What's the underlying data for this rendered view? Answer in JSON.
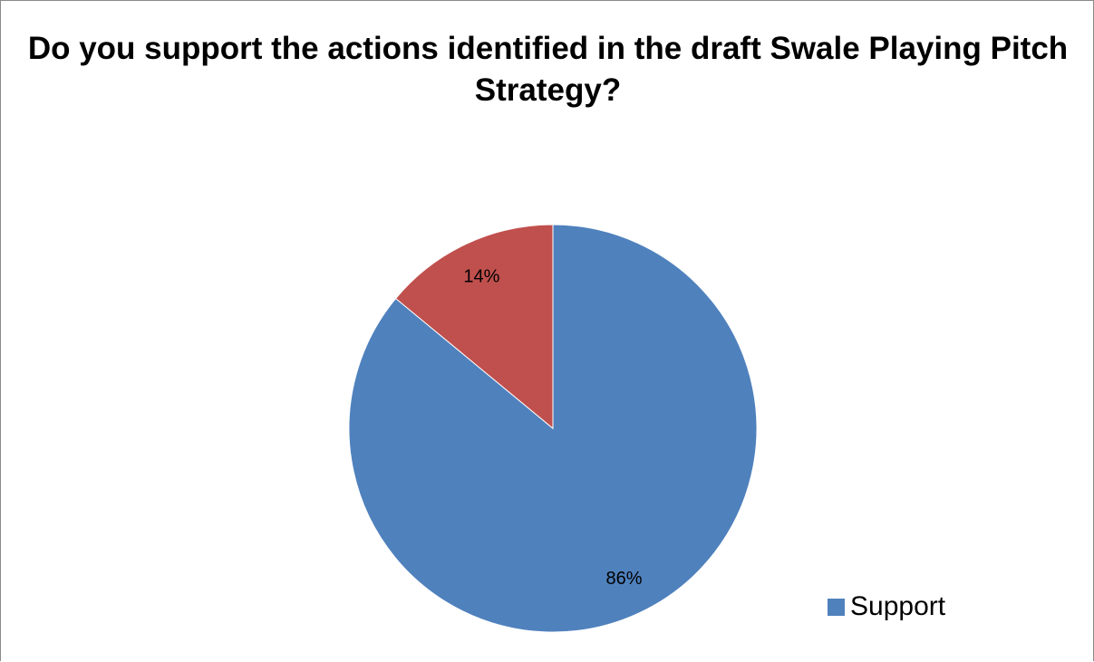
{
  "chart_data": {
    "type": "pie",
    "title": "Do you support the actions identified in the draft Swale Playing Pitch Strategy?",
    "slices": [
      {
        "name": "Support",
        "value": 86,
        "label": "86%",
        "color": "#4F81BD"
      },
      {
        "name": "",
        "value": 14,
        "label": "14%",
        "color": "#C0504D"
      }
    ],
    "legend": {
      "position": "bottom-right",
      "entries": [
        {
          "label": "Support",
          "color": "#4F81BD"
        }
      ]
    }
  }
}
